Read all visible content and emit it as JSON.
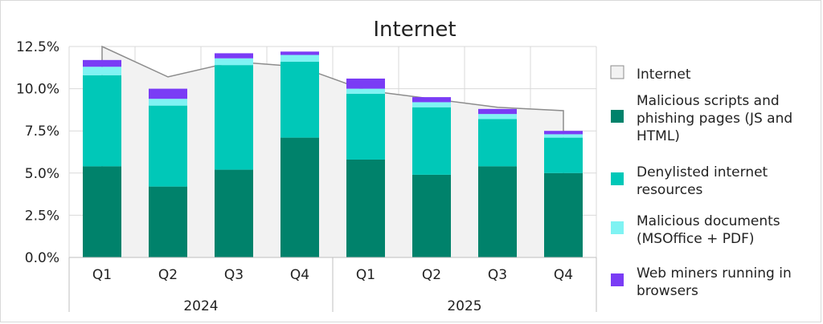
{
  "chart_data": {
    "type": "bar",
    "title": "Internet",
    "groups": [
      "2024",
      "2025"
    ],
    "categories": [
      "Q1",
      "Q2",
      "Q3",
      "Q4",
      "Q1",
      "Q2",
      "Q3",
      "Q4"
    ],
    "ylim": [
      0,
      12.5
    ],
    "yticks": [
      "0.0%",
      "2.5%",
      "5.0%",
      "7.5%",
      "10.0%",
      "12.5%"
    ],
    "grid": true,
    "legend_position": "right",
    "stacked": true,
    "total_series": {
      "name": "Internet",
      "color": "#f2f2f2",
      "values": [
        12.5,
        10.7,
        11.6,
        11.3,
        9.9,
        9.4,
        8.9,
        8.7
      ]
    },
    "series": [
      {
        "name": "Malicious scripts and phishing pages (JS and HTML)",
        "color": "#00826b",
        "values": [
          5.4,
          4.2,
          5.2,
          7.1,
          5.8,
          4.9,
          5.4,
          5.0
        ]
      },
      {
        "name": "Denylisted internet resources",
        "color": "#00c8b8",
        "values": [
          5.4,
          4.8,
          6.2,
          4.5,
          3.9,
          4.0,
          2.8,
          2.1
        ]
      },
      {
        "name": "Malicious documents (MSOffice + PDF)",
        "color": "#7ff3f3",
        "values": [
          0.5,
          0.4,
          0.4,
          0.4,
          0.3,
          0.3,
          0.3,
          0.2
        ]
      },
      {
        "name": "Web miners running in browsers",
        "color": "#7a3cf5",
        "values": [
          0.4,
          0.6,
          0.3,
          0.2,
          0.6,
          0.3,
          0.3,
          0.2
        ]
      }
    ],
    "legend": [
      {
        "label_lines": [
          "Internet"
        ],
        "color": "#f2f2f2"
      },
      {
        "label_lines": [
          "Malicious scripts and",
          "phishing pages (JS and",
          "HTML)"
        ],
        "color": "#00826b"
      },
      {
        "label_lines": [
          "Denylisted internet",
          "resources"
        ],
        "color": "#00c8b8"
      },
      {
        "label_lines": [
          "Malicious documents",
          "(MSOffice + PDF)"
        ],
        "color": "#7ff3f3"
      },
      {
        "label_lines": [
          "Web miners running in",
          "browsers"
        ],
        "color": "#7a3cf5"
      }
    ]
  }
}
